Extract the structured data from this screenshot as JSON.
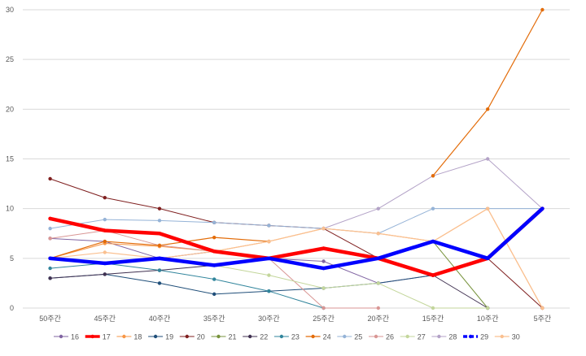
{
  "chart_data": {
    "type": "line",
    "title": "",
    "xlabel": "",
    "ylabel": "",
    "ylim": [
      0,
      30
    ],
    "y_ticks": [
      0,
      5,
      10,
      15,
      20,
      25,
      30
    ],
    "grid": true,
    "legend_position": "bottom",
    "categories": [
      "50주간",
      "45주간",
      "40주간",
      "35주간",
      "30주간",
      "25주간",
      "20주간",
      "15주간",
      "10주간",
      "5주간"
    ],
    "series": [
      {
        "name": "16",
        "color": "#8064a2",
        "width": 1,
        "values": [
          7,
          6.7,
          5,
          5.7,
          5,
          4.7,
          2.5,
          3.3,
          5,
          null
        ]
      },
      {
        "name": "17",
        "color": "#ff0000",
        "width": 4.5,
        "values": [
          9,
          7.8,
          7.5,
          5.7,
          5,
          6,
          5,
          3.3,
          5,
          10
        ]
      },
      {
        "name": "18",
        "color": "#f79646",
        "width": 1,
        "values": [
          5,
          6.5,
          6.2,
          5.7,
          6.7,
          8,
          7.5,
          6.7,
          10,
          0
        ]
      },
      {
        "name": "19",
        "color": "#1f4e79",
        "width": 1,
        "values": [
          3,
          3.4,
          2.5,
          1.4,
          1.7,
          2,
          2.5,
          3.3,
          5,
          null
        ]
      },
      {
        "name": "20",
        "color": "#7f1f1f",
        "width": 1,
        "values": [
          13,
          11.1,
          10,
          8.6,
          8.3,
          8,
          5,
          6.7,
          5,
          0
        ]
      },
      {
        "name": "21",
        "color": "#77933c",
        "width": 1,
        "values": [
          null,
          null,
          null,
          null,
          null,
          null,
          null,
          6.7,
          0,
          null
        ]
      },
      {
        "name": "22",
        "color": "#403151",
        "width": 1,
        "values": [
          3,
          3.4,
          3.8,
          4.3,
          5,
          6,
          5,
          3.3,
          0,
          null
        ]
      },
      {
        "name": "23",
        "color": "#31859c",
        "width": 1,
        "values": [
          4,
          4.5,
          3.8,
          2.9,
          1.7,
          0,
          null,
          null,
          null,
          null
        ]
      },
      {
        "name": "24",
        "color": "#e36c09",
        "width": 1.2,
        "values": [
          5,
          6.7,
          6.3,
          7.1,
          6.7,
          null,
          null,
          13.3,
          20,
          30
        ]
      },
      {
        "name": "25",
        "color": "#95b3d7",
        "width": 1,
        "values": [
          8,
          8.9,
          8.8,
          8.6,
          8.3,
          8,
          7.5,
          10,
          10,
          10
        ]
      },
      {
        "name": "26",
        "color": "#d99694",
        "width": 1,
        "values": [
          7,
          7.8,
          6.3,
          5.7,
          5,
          0,
          0,
          null,
          null,
          null
        ]
      },
      {
        "name": "27",
        "color": "#c3d69b",
        "width": 1,
        "values": [
          null,
          null,
          null,
          4.3,
          3.3,
          2,
          2.5,
          0,
          0,
          null
        ]
      },
      {
        "name": "28",
        "color": "#b3a2c7",
        "width": 1,
        "values": [
          null,
          null,
          null,
          null,
          null,
          8,
          10,
          13.3,
          15,
          10
        ]
      },
      {
        "name": "29",
        "color": "#0000ff",
        "width": 4.5,
        "dashed_legend": true,
        "values": [
          5,
          4.5,
          5,
          4.3,
          5,
          4,
          5,
          6.7,
          5,
          10
        ]
      },
      {
        "name": "30",
        "color": "#fac090",
        "width": 1.2,
        "values": [
          5,
          5.6,
          5,
          5.7,
          6.7,
          8,
          7.5,
          6.7,
          10,
          0
        ]
      }
    ]
  }
}
